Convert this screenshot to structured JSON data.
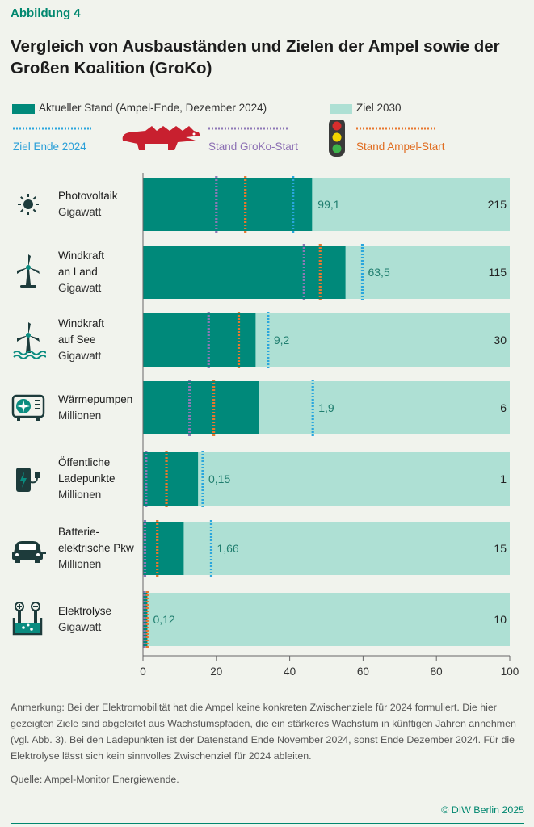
{
  "figure_label": "Abbildung 4",
  "title": "Vergleich von Ausbauständen und Zielen der Ampel sowie der Großen Koalition (GroKo)",
  "legend": {
    "current": "Aktueller Stand (Ampel-Ende, Dezember 2024)",
    "target2030": "Ziel 2030",
    "target2024": "Ziel Ende 2024",
    "groko": "Stand GroKo-Start",
    "ampel": "Stand Ampel-Start"
  },
  "categories": [
    {
      "line1": "Photovoltaik",
      "line2": "",
      "unit": "Gigawatt",
      "icon": "sun-icon"
    },
    {
      "line1": "Windkraft",
      "line2": "an Land",
      "unit": "Gigawatt",
      "icon": "wind-turbine-icon"
    },
    {
      "line1": "Windkraft",
      "line2": "auf See",
      "unit": "Gigawatt",
      "icon": "offshore-wind-icon"
    },
    {
      "line1": "Wärmepumpen",
      "line2": "",
      "unit": "Millionen",
      "icon": "heat-pump-icon"
    },
    {
      "line1": "Öffentliche",
      "line2": "Ladepunkte",
      "unit": "Millionen",
      "icon": "charging-station-icon"
    },
    {
      "line1": "Batterie-",
      "line2": "elektrische Pkw",
      "unit": "Millionen",
      "icon": "electric-car-icon"
    },
    {
      "line1": "Elektrolyse",
      "line2": "",
      "unit": "Gigawatt",
      "icon": "electrolysis-icon"
    }
  ],
  "note": "Anmerkung: Bei der Elektromobilität hat die Ampel keine konkreten Zwischenziele für 2024 formuliert. Die hier gezeigten Ziele sind abgeleitet aus Wachstumspfaden, die ein stärkeres Wachstum in künftigen Jahren annehmen (vgl. Abb. 3). Bei den Ladepunkten ist der Datenstand Ende November 2024, sonst Ende Dezember 2024. Für die Elektrolyse lässt sich kein sinnvolles Zwischenziel für 2024 ableiten.",
  "source": "Quelle: Ampel-Monitor Energiewende.",
  "copyright": "© DIW Berlin 2025",
  "colors": {
    "current": "#00897a",
    "target": "#aee0d4",
    "target2024": "#2aa6dd",
    "groko": "#8e78b6",
    "ampel": "#e8772e",
    "background": "#f1f3ed"
  },
  "chart_data": {
    "type": "bar",
    "orientation": "horizontal",
    "stacked": "overlay",
    "xlim": [
      0,
      100
    ],
    "xticks": [
      0,
      20,
      40,
      60,
      80,
      100
    ],
    "x_unit": "percent of 2030 target",
    "categories": [
      "Photovoltaik",
      "Windkraft an Land",
      "Windkraft auf See",
      "Wärmepumpen",
      "Öffentliche Ladepunkte",
      "Batterie-elektrische Pkw",
      "Elektrolyse"
    ],
    "current_labels": [
      "99,1",
      "63,5",
      "9,2",
      "1,9",
      "0,15",
      "1,66",
      "0,12"
    ],
    "target_labels": [
      "215",
      "115",
      "30",
      "6",
      "1",
      "15",
      "10"
    ],
    "series": [
      {
        "name": "Aktueller Stand (Ampel-Ende, Dezember 2024)",
        "values": [
          46.1,
          55.2,
          30.7,
          31.7,
          15.0,
          11.1,
          1.2
        ]
      },
      {
        "name": "Ziel 2030",
        "values": [
          100,
          100,
          100,
          100,
          100,
          100,
          100
        ]
      },
      {
        "name": "Ziel Ende 2024",
        "values": [
          40.9,
          59.8,
          34.1,
          46.3,
          16.3,
          18.6,
          null
        ]
      },
      {
        "name": "Stand GroKo-Start",
        "values": [
          20.0,
          43.9,
          17.9,
          12.7,
          0.4,
          0.1,
          0.0
        ]
      },
      {
        "name": "Stand Ampel-Start",
        "values": [
          27.9,
          48.3,
          26.1,
          19.3,
          6.4,
          3.9,
          0.3
        ]
      }
    ]
  }
}
